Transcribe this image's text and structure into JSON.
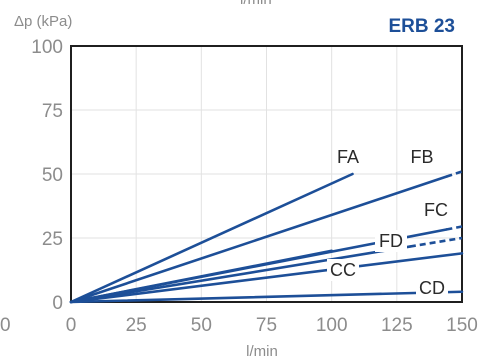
{
  "chart_data": {
    "type": "line",
    "title": "ERB 23",
    "top_label": "l/min",
    "ylabel": "Δp (kPa)",
    "xlabel": "l/min",
    "xlim": [
      0,
      150
    ],
    "ylim": [
      0,
      100
    ],
    "x_ticks": [
      "0",
      "25",
      "50",
      "75",
      "100",
      "125",
      "150"
    ],
    "y_ticks": [
      "0",
      "25",
      "50",
      "75",
      "100"
    ],
    "left_edge_tick": "0",
    "grid": true,
    "series": [
      {
        "name": "FA",
        "x": [
          0,
          108
        ],
        "y": [
          0,
          50
        ],
        "dash_to": null
      },
      {
        "name": "FB",
        "x": [
          0,
          150
        ],
        "y": [
          0,
          51
        ],
        "dash_to": 144
      },
      {
        "name": "FC",
        "x": [
          0,
          150
        ],
        "y": [
          0,
          29.5
        ],
        "dash_to": 144
      },
      {
        "name": "FD",
        "x": [
          0,
          150
        ],
        "y": [
          0,
          25
        ],
        "dash_to": 130
      },
      {
        "name": "CC",
        "x": [
          0,
          150
        ],
        "y": [
          0,
          19
        ],
        "dash_to": null
      },
      {
        "name": "",
        "x": [
          0,
          100
        ],
        "y": [
          0,
          20
        ],
        "dash_to": null
      },
      {
        "name": "CD",
        "x": [
          0,
          150
        ],
        "y": [
          0,
          4
        ],
        "dash_to": null
      }
    ],
    "colors": {
      "series": "#1d4f98",
      "title": "#1d4f98",
      "ticks": "#8c8c8c"
    }
  }
}
